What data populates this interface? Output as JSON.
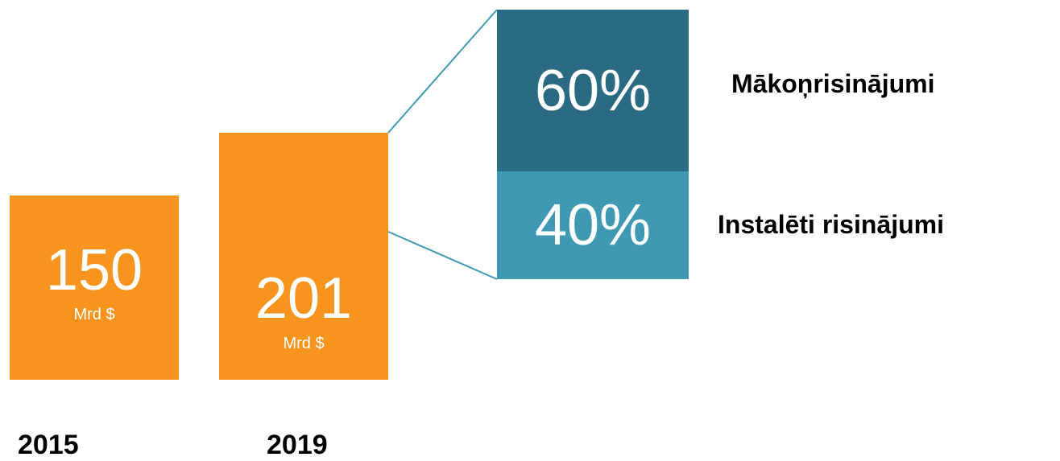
{
  "chart_data": {
    "type": "bar",
    "categories": [
      "2015",
      "2019"
    ],
    "values": [
      150,
      201
    ],
    "unit": "Mrd $",
    "breakdown": {
      "category": "2019",
      "segments": [
        {
          "label": "Mākoņrisinājumi",
          "value": 60,
          "display": "60%",
          "color": "#2a6a82"
        },
        {
          "label": "Instalēti risinājumi",
          "value": 40,
          "display": "40%",
          "color": "#3f99b3"
        }
      ]
    },
    "bar_color": "#f7941d",
    "connector_color": "#3f99b3"
  },
  "bars": [
    {
      "value_text": "150",
      "unit_text": "Mrd $",
      "year": "2015"
    },
    {
      "value_text": "201",
      "unit_text": "Mrd $",
      "year": "2019"
    }
  ],
  "segments": [
    {
      "value_text": "60%",
      "label": "Mākoņrisinājumi"
    },
    {
      "value_text": "40%",
      "label": "Instalēti risinājumi"
    }
  ]
}
